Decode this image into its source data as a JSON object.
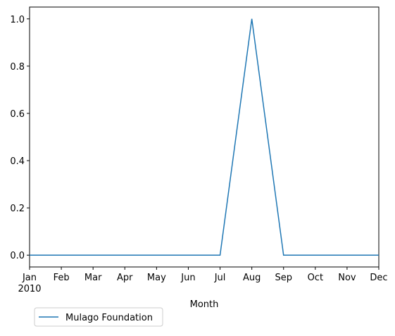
{
  "chart_data": {
    "type": "line",
    "categories": [
      "Jan\n2010",
      "Feb",
      "Mar",
      "Apr",
      "May",
      "Jun",
      "Jul",
      "Aug",
      "Sep",
      "Oct",
      "Nov",
      "Dec"
    ],
    "series": [
      {
        "name": "Mulago Foundation",
        "color": "#1f77b4",
        "values": [
          0,
          0,
          0,
          0,
          0,
          0,
          0,
          1,
          0,
          0,
          0,
          0
        ]
      }
    ],
    "xlabel": "Month",
    "ylim": [
      -0.05,
      1.05
    ],
    "yticks": [
      {
        "value": 0,
        "label": "0.0"
      },
      0.2,
      0.4,
      0.6,
      0.8,
      {
        "value": 1,
        "label": "1.0"
      }
    ],
    "legend": "lower left outside"
  }
}
